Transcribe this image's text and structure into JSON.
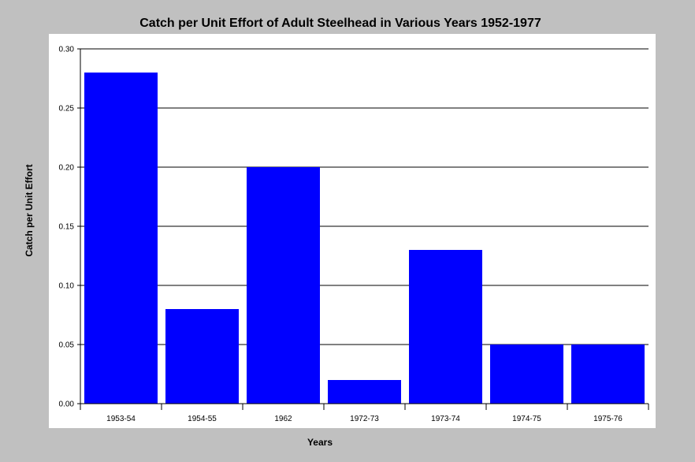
{
  "chart_data": {
    "type": "bar",
    "title": "Catch per Unit Effort of Adult Steelhead in Various Years 1952-1977",
    "xlabel": "Years",
    "ylabel": "Catch per Unit Effort",
    "categories": [
      "1953-54",
      "1954-55",
      "1962",
      "1972-73",
      "1973-74",
      "1974-75",
      "1975-76"
    ],
    "values": [
      0.28,
      0.08,
      0.2,
      0.02,
      0.13,
      0.05,
      0.05
    ],
    "ylim": [
      0,
      0.3
    ],
    "yticks": [
      "0.00",
      "0.05",
      "0.10",
      "0.15",
      "0.20",
      "0.25",
      "0.30"
    ],
    "grid": true,
    "bar_color": "#0000ff",
    "plot_background": "#ffffff",
    "page_background": "#c0c0c0"
  }
}
